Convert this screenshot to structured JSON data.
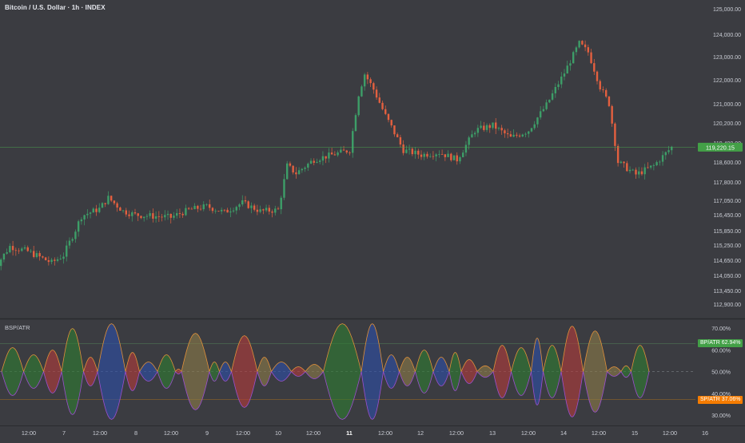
{
  "header": {
    "title": "Bitcoin / U.S. Dollar · 1h · INDEX"
  },
  "price_axis": {
    "ticks": [
      "125,000.00",
      "124,000.00",
      "123,000.00",
      "122,000.00",
      "121,000.00",
      "120,200.00",
      "119,400.00",
      "118,600.00",
      "117,800.00",
      "117,050.00",
      "116,450.00",
      "115,850.00",
      "115,250.00",
      "114,650.00",
      "114,050.00",
      "113,450.00",
      "112,900.00"
    ],
    "last_price_label": "119,220.15",
    "last_price_color": "#43a047"
  },
  "indicator": {
    "title": "BSP/ATR",
    "ticks": [
      "70.00%",
      "60.00%",
      "50.00%",
      "40.00%",
      "30.00%"
    ],
    "bp_label": "BP/ATR",
    "bp_value": "62.94%",
    "sp_label": "SP/ATR",
    "sp_value": "37.06%",
    "bp_color": "#43a047",
    "sp_color": "#f57c00"
  },
  "time_axis": {
    "ticks": [
      "12:00",
      "7",
      "12:00",
      "8",
      "12:00",
      "9",
      "12:00",
      "10",
      "12:00",
      "11",
      "12:00",
      "12",
      "12:00",
      "13",
      "12:00",
      "14",
      "12:00",
      "15",
      "12:00",
      "16"
    ],
    "bold_tick": "11"
  },
  "colors": {
    "up": "#3d9e68",
    "down": "#e4603f",
    "background": "#3b3c41",
    "green_fill": "#2e7d32",
    "red_fill": "#b23b3b",
    "blue_fill": "#2d4fa8",
    "olive_fill": "#8a7a48"
  },
  "chart_data": [
    {
      "type": "candlestick",
      "title": "Bitcoin / U.S. Dollar · 1h · INDEX",
      "x": [
        "12:00",
        "7",
        "12:00",
        "8",
        "12:00",
        "9",
        "12:00",
        "10",
        "12:00",
        "11",
        "12:00",
        "12",
        "12:00",
        "13",
        "12:00",
        "14",
        "12:00",
        "15",
        "12:00"
      ],
      "close_path": [
        {
          "x": "6 00:00",
          "y": 114200
        },
        {
          "x": "6 06:00",
          "y": 115200
        },
        {
          "x": "6 12:00",
          "y": 115000
        },
        {
          "x": "6 20:00",
          "y": 114550
        },
        {
          "x": "7 00:00",
          "y": 114850
        },
        {
          "x": "7 06:00",
          "y": 116400
        },
        {
          "x": "7 12:00",
          "y": 116700
        },
        {
          "x": "7 15:00",
          "y": 117150
        },
        {
          "x": "7 20:00",
          "y": 116600
        },
        {
          "x": "8 00:00",
          "y": 116450
        },
        {
          "x": "8 12:00",
          "y": 116350
        },
        {
          "x": "8 18:00",
          "y": 116650
        },
        {
          "x": "9 00:00",
          "y": 116800
        },
        {
          "x": "9 06:00",
          "y": 116550
        },
        {
          "x": "9 12:00",
          "y": 116950
        },
        {
          "x": "9 18:00",
          "y": 116600
        },
        {
          "x": "10 00:00",
          "y": 116650
        },
        {
          "x": "10 03:00",
          "y": 118450
        },
        {
          "x": "10 06:00",
          "y": 118150
        },
        {
          "x": "10 12:00",
          "y": 118700
        },
        {
          "x": "10 18:00",
          "y": 118900
        },
        {
          "x": "11 00:00",
          "y": 119100
        },
        {
          "x": "11 03:00",
          "y": 121400
        },
        {
          "x": "11 05:00",
          "y": 122250
        },
        {
          "x": "11 08:00",
          "y": 121600
        },
        {
          "x": "11 12:00",
          "y": 120500
        },
        {
          "x": "11 18:00",
          "y": 119100
        },
        {
          "x": "12 00:00",
          "y": 118900
        },
        {
          "x": "12 06:00",
          "y": 119000
        },
        {
          "x": "12 12:00",
          "y": 118700
        },
        {
          "x": "12 18:00",
          "y": 119900
        },
        {
          "x": "13 00:00",
          "y": 120100
        },
        {
          "x": "13 06:00",
          "y": 119600
        },
        {
          "x": "13 12:00",
          "y": 119900
        },
        {
          "x": "13 18:00",
          "y": 120950
        },
        {
          "x": "14 00:00",
          "y": 122300
        },
        {
          "x": "14 05:00",
          "y": 123600
        },
        {
          "x": "14 08:00",
          "y": 123200
        },
        {
          "x": "14 12:00",
          "y": 121700
        },
        {
          "x": "14 15:00",
          "y": 121000
        },
        {
          "x": "14 18:00",
          "y": 118600
        },
        {
          "x": "15 00:00",
          "y": 118100
        },
        {
          "x": "15 06:00",
          "y": 118450
        },
        {
          "x": "15 12:00",
          "y": 119220.15
        }
      ],
      "last_price": 119220.15,
      "y_ticks": [
        125000,
        124000,
        123000,
        122000,
        121000,
        120200,
        119400,
        118600,
        117800,
        117050,
        116450,
        115850,
        115250,
        114650,
        114050,
        113450,
        112900
      ]
    },
    {
      "type": "area",
      "title": "BSP/ATR",
      "ylim": [
        26,
        74
      ],
      "y_ticks": [
        "70.00%",
        "60.00%",
        "50.00%",
        "40.00%",
        "30.00%"
      ],
      "reference_lines": [
        62.94,
        50,
        37.06
      ],
      "series": [
        {
          "name": "BP/ATR",
          "last_value": 62.94
        },
        {
          "name": "SP/ATR",
          "last_value": 37.06
        }
      ],
      "lobes": [
        {
          "x0": 0,
          "x1": 0.55,
          "amp": 0.5,
          "fill": "green"
        },
        {
          "x0": 0.55,
          "x1": 1.05,
          "amp": 0.35,
          "fill": "green"
        },
        {
          "x0": 1.05,
          "x1": 1.5,
          "amp": 0.45,
          "fill": "red"
        },
        {
          "x0": 1.5,
          "x1": 2.05,
          "amp": 0.9,
          "fill": "green"
        },
        {
          "x0": 2.05,
          "x1": 2.4,
          "amp": 0.3,
          "fill": "red"
        },
        {
          "x0": 2.4,
          "x1": 3.1,
          "amp": 1.0,
          "fill": "blue"
        },
        {
          "x0": 3.1,
          "x1": 3.45,
          "amp": 0.4,
          "fill": "red"
        },
        {
          "x0": 3.45,
          "x1": 3.9,
          "amp": 0.2,
          "fill": "blue"
        },
        {
          "x0": 3.9,
          "x1": 4.35,
          "amp": 0.35,
          "fill": "green"
        },
        {
          "x0": 4.35,
          "x1": 4.5,
          "amp": 0.05,
          "fill": "red"
        },
        {
          "x0": 4.5,
          "x1": 5.2,
          "amp": 0.8,
          "fill": "olive"
        },
        {
          "x0": 5.2,
          "x1": 5.45,
          "amp": 0.2,
          "fill": "green"
        },
        {
          "x0": 5.45,
          "x1": 5.75,
          "amp": 0.2,
          "fill": "blue"
        },
        {
          "x0": 5.75,
          "x1": 6.4,
          "amp": 0.75,
          "fill": "red"
        },
        {
          "x0": 6.4,
          "x1": 6.75,
          "amp": 0.3,
          "fill": "olive"
        },
        {
          "x0": 6.75,
          "x1": 7.25,
          "amp": 0.2,
          "fill": "blue"
        },
        {
          "x0": 7.25,
          "x1": 7.6,
          "amp": 0.1,
          "fill": "red"
        },
        {
          "x0": 7.6,
          "x1": 8.05,
          "amp": 0.15,
          "fill": "olive"
        },
        {
          "x0": 8.05,
          "x1": 9.0,
          "amp": 1.0,
          "fill": "green"
        },
        {
          "x0": 9.0,
          "x1": 9.55,
          "amp": 1.0,
          "fill": "blue"
        },
        {
          "x0": 9.55,
          "x1": 9.95,
          "amp": 0.35,
          "fill": "blue"
        },
        {
          "x0": 9.95,
          "x1": 10.35,
          "amp": 0.3,
          "fill": "olive"
        },
        {
          "x0": 10.35,
          "x1": 10.8,
          "amp": 0.45,
          "fill": "green"
        },
        {
          "x0": 10.8,
          "x1": 11.2,
          "amp": 0.3,
          "fill": "blue"
        },
        {
          "x0": 11.2,
          "x1": 11.5,
          "amp": 0.4,
          "fill": "green"
        },
        {
          "x0": 11.5,
          "x1": 11.9,
          "amp": 0.25,
          "fill": "red"
        },
        {
          "x0": 11.9,
          "x1": 12.3,
          "amp": 0.12,
          "fill": "olive"
        },
        {
          "x0": 12.3,
          "x1": 12.75,
          "amp": 0.55,
          "fill": "red"
        },
        {
          "x0": 12.75,
          "x1": 13.25,
          "amp": 0.5,
          "fill": "green"
        },
        {
          "x0": 13.25,
          "x1": 13.55,
          "amp": 0.7,
          "fill": "blue"
        },
        {
          "x0": 13.55,
          "x1": 14.0,
          "amp": 0.55,
          "fill": "green"
        },
        {
          "x0": 14.0,
          "x1": 14.55,
          "amp": 0.95,
          "fill": "red"
        },
        {
          "x0": 14.55,
          "x1": 15.15,
          "amp": 0.85,
          "fill": "olive"
        },
        {
          "x0": 15.15,
          "x1": 15.5,
          "amp": 0.1,
          "fill": "olive"
        },
        {
          "x0": 15.5,
          "x1": 15.75,
          "amp": 0.12,
          "fill": "green"
        },
        {
          "x0": 15.75,
          "x1": 16.2,
          "amp": 0.55,
          "fill": "green"
        }
      ]
    }
  ]
}
